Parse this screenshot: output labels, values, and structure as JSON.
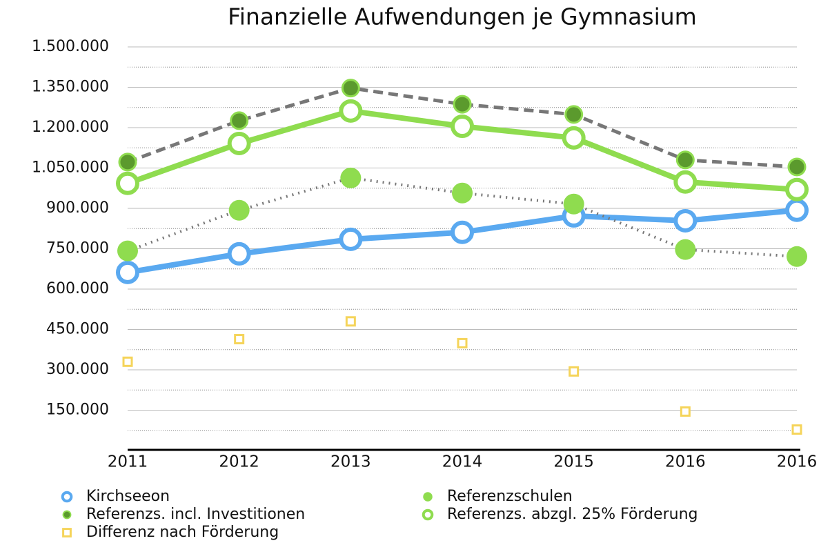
{
  "chart_data": {
    "type": "line",
    "title": "Finanzielle Aufwendungen je Gymnasium",
    "categories": [
      "2011",
      "2012",
      "2013",
      "2014",
      "2015",
      "2016",
      "2016"
    ],
    "ylim": [
      0,
      1500000
    ],
    "yticks": [
      {
        "value": 150000,
        "label": "150.000"
      },
      {
        "value": 300000,
        "label": "300.000"
      },
      {
        "value": 450000,
        "label": "450.000"
      },
      {
        "value": 600000,
        "label": "600.000"
      },
      {
        "value": 750000,
        "label": "750.000"
      },
      {
        "value": 900000,
        "label": "900.000"
      },
      {
        "value": 1050000,
        "label": "1.050.000"
      },
      {
        "value": 1200000,
        "label": "1.200.000"
      },
      {
        "value": 1350000,
        "label": "1.350.000"
      },
      {
        "value": 1500000,
        "label": "1.500.000"
      }
    ],
    "grid": true,
    "minor_grid": true,
    "legend": "bottom",
    "series": [
      {
        "name": "Kirchseeon",
        "color": "#5aa9f0",
        "line": "solid",
        "line_color": "#5aa9f0",
        "marker": "open-circle",
        "values": [
          662000,
          731000,
          785000,
          811000,
          872000,
          854000,
          893000
        ]
      },
      {
        "name": "Referenzschulen",
        "color": "#8fdc4f",
        "line": "dotted",
        "line_color": "#777777",
        "marker": "filled-circle",
        "values": [
          742000,
          893000,
          1013000,
          957000,
          916000,
          747000,
          721000
        ]
      },
      {
        "name": "Referenzs. incl. Investitionen",
        "color": "#5b9a2d",
        "line": "dashed",
        "line_color": "#777777",
        "marker": "ringed-circle",
        "values": [
          1072000,
          1226000,
          1347000,
          1287000,
          1249000,
          1080000,
          1054000
        ]
      },
      {
        "name": "Referenzs. abzgl. 25% Förderung",
        "color": "#8fdc4f",
        "line": "solid",
        "line_color": "#8fdc4f",
        "marker": "open-circle",
        "values": [
          993000,
          1141000,
          1262000,
          1205000,
          1162000,
          998000,
          970000
        ]
      },
      {
        "name": "Differenz nach Förderung",
        "color": "#f5d45a",
        "line": "none",
        "line_color": "#f5d45a",
        "marker": "open-square",
        "values": [
          330000,
          414000,
          480000,
          399000,
          294000,
          145000,
          78000
        ]
      }
    ]
  }
}
